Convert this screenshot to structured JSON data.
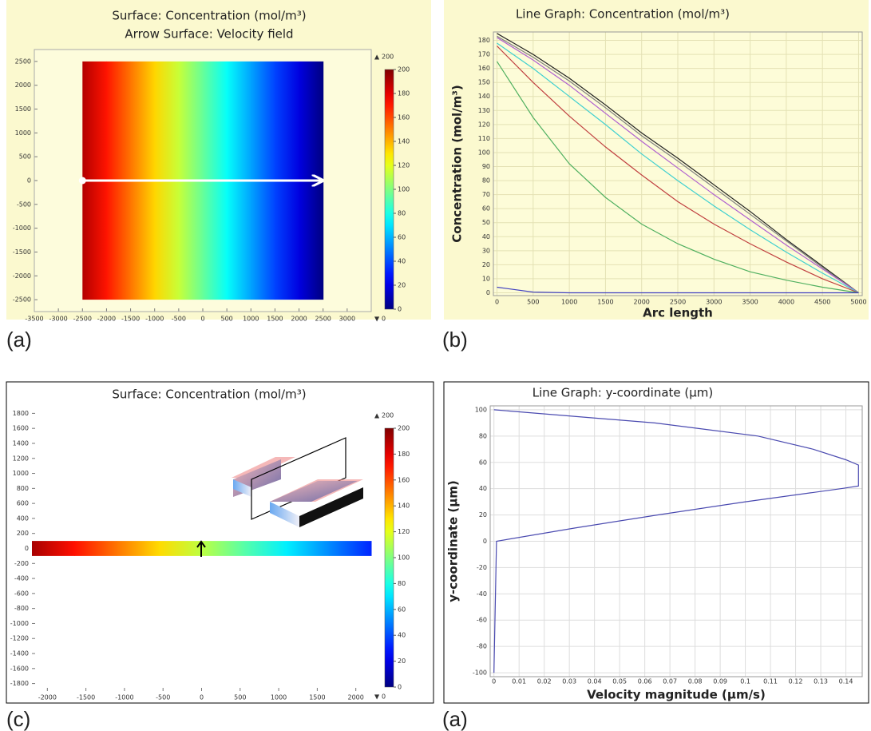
{
  "chart_data": [
    {
      "type": "heatmap",
      "panel_label": "(a)",
      "title": "Surface: Concentration (mol/m³)",
      "subtitle": "Arrow Surface: Velocity field",
      "x": [
        -2500,
        -2000,
        -1500,
        -1000,
        -500,
        0,
        500,
        1000,
        1500,
        2000,
        2500
      ],
      "values": [
        190,
        171,
        152,
        133,
        114,
        95,
        76,
        57,
        38,
        19,
        0
      ],
      "y_extent": [
        -2500,
        2500
      ],
      "cut_line": {
        "x": [
          -2500,
          2500
        ],
        "y": [
          0,
          0
        ],
        "color": "#ffffff"
      },
      "xlim": [
        -3500,
        3500
      ],
      "xticks": [
        -3500,
        -3000,
        -2500,
        -2000,
        -1500,
        -1000,
        -500,
        0,
        500,
        1000,
        1500,
        2000,
        2500,
        3000
      ],
      "ylim": [
        -2750,
        2750
      ],
      "yticks": [
        -2500,
        -2000,
        -1500,
        -1000,
        -500,
        0,
        500,
        1000,
        1500,
        2000,
        2500
      ],
      "clim": [
        0,
        200
      ],
      "cticks": [
        0,
        20,
        40,
        60,
        80,
        100,
        120,
        140,
        160,
        180,
        200
      ],
      "grid": false
    },
    {
      "type": "line",
      "panel_label": "(b)",
      "title": "Line Graph: Concentration (mol/m³)",
      "xlabel": "Arc length",
      "ylabel": "Concentration (mol/m³)",
      "x": [
        0,
        500,
        1000,
        1500,
        2000,
        2500,
        3000,
        3500,
        4000,
        4500,
        5000
      ],
      "series": [
        {
          "color": "#222222",
          "values": [
            185,
            170,
            153,
            134,
            114,
            96,
            77,
            58,
            38,
            19,
            0
          ]
        },
        {
          "color": "#808080",
          "values": [
            183,
            168,
            151,
            132,
            112,
            94,
            75,
            56,
            37,
            18,
            0
          ]
        },
        {
          "color": "#b060d0",
          "values": [
            182,
            166,
            148,
            128,
            108,
            89,
            70,
            52,
            34,
            17,
            0
          ]
        },
        {
          "color": "#40d0d0",
          "values": [
            178,
            160,
            140,
            120,
            99,
            80,
            62,
            45,
            29,
            14,
            0
          ]
        },
        {
          "color": "#c04040",
          "values": [
            176,
            150,
            126,
            104,
            84,
            65,
            49,
            35,
            22,
            10,
            0
          ]
        },
        {
          "color": "#50b060",
          "values": [
            165,
            125,
            92,
            68,
            49,
            35,
            24,
            15,
            9,
            4,
            0
          ]
        },
        {
          "color": "#4040c0",
          "values": [
            4,
            0.5,
            0,
            0,
            0,
            0,
            0,
            0,
            0,
            0,
            0
          ]
        }
      ],
      "xlim": [
        -50,
        5050
      ],
      "xticks": [
        0,
        500,
        1000,
        1500,
        2000,
        2500,
        3000,
        3500,
        4000,
        4500,
        5000
      ],
      "ylim": [
        -2,
        186
      ],
      "yticks": [
        0,
        10,
        20,
        30,
        40,
        50,
        60,
        70,
        80,
        90,
        100,
        110,
        120,
        130,
        140,
        150,
        160,
        170,
        180
      ],
      "grid": true
    },
    {
      "type": "heatmap",
      "panel_label": "(c)",
      "title": "Surface: Concentration (mol/m³)",
      "x": [
        -2200,
        -1650,
        -1100,
        -550,
        0,
        550,
        1100,
        1650,
        2200
      ],
      "values": [
        192,
        172,
        152,
        132,
        112,
        92,
        72,
        52,
        32
      ],
      "y_extent": [
        -100,
        100
      ],
      "xlim": [
        -2200,
        2200
      ],
      "xticks": [
        -2000,
        -1500,
        -1000,
        -500,
        0,
        500,
        1000,
        1500,
        2000
      ],
      "ylim": [
        -1900,
        1900
      ],
      "yticks": [
        -1800,
        -1600,
        -1400,
        -1200,
        -1000,
        -800,
        -600,
        -400,
        -200,
        0,
        200,
        400,
        600,
        800,
        1000,
        1200,
        1400,
        1600,
        1800
      ],
      "clim": [
        0,
        200
      ],
      "cticks": [
        0,
        20,
        40,
        60,
        80,
        100,
        120,
        140,
        160,
        180,
        200
      ],
      "grid": false
    },
    {
      "type": "line",
      "panel_label": "(a)",
      "title": "Line Graph: y-coordinate (µm)",
      "xlabel": "Velocity magnitude (µm/s)",
      "ylabel": "y-coordinate (µm)",
      "x": [
        0,
        0.001,
        0.032,
        0.065,
        0.1,
        0.138,
        0.145,
        0.145,
        0.14,
        0.127,
        0.105,
        0.064,
        0
      ],
      "series": [
        {
          "color": "#4a4ab0",
          "values": [
            -100,
            0,
            10,
            20,
            30,
            40,
            42,
            58,
            62,
            70,
            80,
            90,
            100
          ]
        }
      ],
      "xlim": [
        -0.0015,
        0.1465
      ],
      "xticks": [
        0,
        0.01,
        0.02,
        0.03,
        0.04,
        0.05,
        0.06,
        0.07,
        0.08,
        0.09,
        0.1,
        0.11,
        0.12,
        0.13,
        0.14
      ],
      "ylim": [
        -103,
        103
      ],
      "yticks": [
        -100,
        -80,
        -60,
        -40,
        -20,
        0,
        20,
        40,
        60,
        80,
        100
      ],
      "grid": true
    }
  ]
}
